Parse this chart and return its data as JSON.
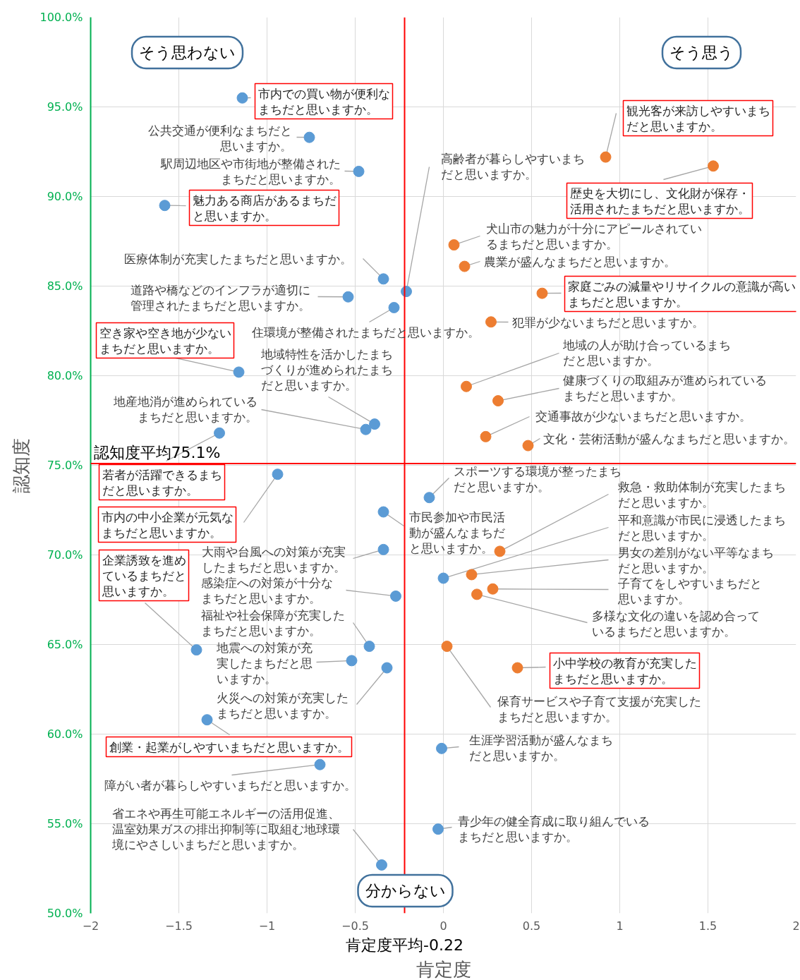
{
  "chart_data": {
    "type": "scatter",
    "xlabel": "肯定度",
    "ylabel": "認知度",
    "xlim": [
      -2,
      2
    ],
    "xticks": [
      -2,
      -1.5,
      -1,
      -0.5,
      0,
      0.5,
      1,
      1.5,
      2
    ],
    "ylim": [
      50,
      100
    ],
    "yticks": [
      {
        "value": 50,
        "label": "50.0%"
      },
      {
        "value": 55,
        "label": "55.0%"
      },
      {
        "value": 60,
        "label": "60.0%"
      },
      {
        "value": 65,
        "label": "65.0%"
      },
      {
        "value": 70,
        "label": "70.0%"
      },
      {
        "value": 75,
        "label": "75.0%"
      },
      {
        "value": 80,
        "label": "80.0%"
      },
      {
        "value": 85,
        "label": "85.0%"
      },
      {
        "value": 90,
        "label": "90.0%"
      },
      {
        "value": 95,
        "label": "95.0%"
      },
      {
        "value": 100,
        "label": "100.0%"
      }
    ],
    "grid": true,
    "marker": "circle",
    "series": [
      {
        "color": "#5b9bd5",
        "x": [
          -1.14,
          -0.76,
          -0.48,
          -1.58,
          -0.34,
          -0.21,
          -0.54,
          -0.28,
          -1.16,
          -0.39,
          -0.44,
          -1.27,
          -0.94,
          -0.08,
          -0.34,
          -0.34,
          -0.27,
          -1.4,
          -0.42,
          -0.52,
          -0.32,
          -1.34,
          -0.01,
          -0.7,
          -0.03,
          -0.35,
          0.0
        ],
        "values": [
          95.5,
          93.3,
          91.4,
          89.5,
          85.4,
          84.7,
          84.4,
          83.8,
          80.2,
          77.3,
          77.0,
          76.8,
          74.5,
          73.2,
          72.4,
          70.3,
          67.7,
          64.7,
          64.9,
          64.1,
          63.7,
          60.8,
          59.2,
          58.3,
          54.7,
          52.7,
          68.7
        ]
      },
      {
        "color": "#ed7d31",
        "x": [
          0.92,
          1.53,
          0.06,
          0.12,
          0.56,
          0.27,
          0.13,
          0.31,
          0.24,
          0.48,
          0.32,
          0.16,
          0.28,
          0.19,
          0.02,
          0.42
        ],
        "values": [
          92.2,
          91.7,
          87.3,
          86.1,
          84.6,
          83.0,
          79.4,
          78.6,
          76.6,
          76.1,
          70.2,
          68.9,
          68.1,
          67.8,
          64.9,
          63.7
        ]
      }
    ],
    "ref_lines": [
      {
        "axis": "x",
        "value": -0.22,
        "label": "肯定度平均-0.22",
        "color": "#ff0000"
      },
      {
        "axis": "y",
        "value": 75.1,
        "label": "認知度平均75.1%",
        "color": "#ff0000"
      }
    ],
    "annotations": [
      {
        "text": "市内での買い物が便利なまちだと思いますか。",
        "x": -1.14,
        "y": 95.5
      },
      {
        "text": "公共交通が便利なまちだと思いますか。",
        "x": -0.76,
        "y": 93.3
      },
      {
        "text": "駅周辺地区や市街地が整備されたまちだと思いますか。",
        "x": -0.48,
        "y": 91.4
      },
      {
        "text": "魅力ある商店があるまちだと思いますか。",
        "x": -1.58,
        "y": 89.5
      },
      {
        "text": "医療体制が充実したまちだと思いますか。",
        "x": -0.34,
        "y": 85.4
      },
      {
        "text": "高齢者が暮らしやすいまちだと思いますか。",
        "x": -0.21,
        "y": 84.7
      },
      {
        "text": "道路や橋などのインフラが適切に管理されたまちだと思いますか。",
        "x": -0.54,
        "y": 84.4
      },
      {
        "text": "住環境が整備されたまちだと思いますか。",
        "x": -0.28,
        "y": 83.8
      },
      {
        "text": "空き家や空き地が少ないまちだと思いますか。",
        "x": -1.16,
        "y": 80.2
      },
      {
        "text": "地域特性を活かしたまちづくりが進められたまちだと思いますか。",
        "x": -0.39,
        "y": 77.3
      },
      {
        "text": "地産地消が進められているまちだと思いますか。",
        "x": -0.44,
        "y": 77.0
      },
      {
        "text": "若者が活躍できるまちだと思いますか。",
        "x": -1.27,
        "y": 76.8
      },
      {
        "text": "市内の中小企業が元気なまちだと思いますか。",
        "x": -0.94,
        "y": 74.5
      },
      {
        "text": "スポーツする環境が整ったまちだと思いますか。",
        "x": -0.08,
        "y": 73.2
      },
      {
        "text": "市民参加や市民活動が盛んなまちだと思いますか。",
        "x": -0.34,
        "y": 72.4
      },
      {
        "text": "大雨や台風への対策が充実したまちだと思いますか。",
        "x": -0.34,
        "y": 70.3
      },
      {
        "text": "感染症への対策が十分なまちだと思いますか。",
        "x": -0.27,
        "y": 67.7
      },
      {
        "text": "企業誘致を進めているまちだと思いますか。",
        "x": -1.4,
        "y": 64.7
      },
      {
        "text": "福祉や社会保障が充実したまちだと思いますか。",
        "x": -0.42,
        "y": 64.9
      },
      {
        "text": "地震への対策が充実したまちだと思いますか。",
        "x": -0.52,
        "y": 64.1
      },
      {
        "text": "火災への対策が充実したまちだと思いますか。",
        "x": -0.32,
        "y": 63.7
      },
      {
        "text": "創業・起業がしやすいまちだと思いますか。",
        "x": -1.34,
        "y": 60.8
      },
      {
        "text": "生涯学習活動が盛んなまちだと思いますか。",
        "x": -0.01,
        "y": 59.2
      },
      {
        "text": "障がい者が暮らしやすいまちだと思いますか。",
        "x": -0.7,
        "y": 58.3
      },
      {
        "text": "青少年の健全育成に取り組んでいるまちだと思いますか。",
        "x": -0.03,
        "y": 54.7
      },
      {
        "text": "省エネや再生可能エネルギーの活用促進、温室効果ガスの排出抑制等に取組む地球環境にやさしいまちだと思いますか。",
        "x": -0.35,
        "y": 52.7
      },
      {
        "text": "平和意識が市民に浸透したまちだと思いますか。",
        "x": 0.0,
        "y": 68.7
      },
      {
        "text": "観光客が来訪しやすいまちだと思いますか。",
        "x": 0.92,
        "y": 92.2
      },
      {
        "text": "歴史を大切にし、文化財が保存・活用されたまちだと思いますか。",
        "x": 1.53,
        "y": 91.7
      },
      {
        "text": "犬山市の魅力が十分にアピールされているまちだと思いますか。",
        "x": 0.06,
        "y": 87.3
      },
      {
        "text": "農業が盛んなまちだと思いますか。",
        "x": 0.12,
        "y": 86.1
      },
      {
        "text": "家庭ごみの減量やリサイクルの意識が高いまちだと思いますか。",
        "x": 0.56,
        "y": 84.6
      },
      {
        "text": "犯罪が少ないまちだと思いますか。",
        "x": 0.27,
        "y": 83.0
      },
      {
        "text": "地域の人が助け合っているまちだと思いますか。",
        "x": 0.13,
        "y": 79.4
      },
      {
        "text": "健康づくりの取組みが進められているまちだと思いますか。",
        "x": 0.31,
        "y": 78.6
      },
      {
        "text": "交通事故が少ないまちだと思いますか。",
        "x": 0.24,
        "y": 76.6
      },
      {
        "text": "文化・芸術活動が盛んなまちだと思いますか。",
        "x": 0.48,
        "y": 76.1
      },
      {
        "text": "救急・救助体制が充実したまちだと思いますか。",
        "x": 0.32,
        "y": 70.2
      },
      {
        "text": "男女の差別がない平等なまちだと思いますか。",
        "x": 0.16,
        "y": 68.9
      },
      {
        "text": "子育てをしやすいまちだと思いますか。",
        "x": 0.28,
        "y": 68.1
      },
      {
        "text": "多様な文化の違いを認め合っているまちだと思いますか。",
        "x": 0.19,
        "y": 67.8
      },
      {
        "text": "保育サービスや子育て支援が充実したまちだと思いますか。",
        "x": 0.02,
        "y": 64.9
      },
      {
        "text": "小中学校の教育が充実したまちだと思いますか。",
        "x": 0.42,
        "y": 63.7
      },
      "そう思わない",
      "そう思う",
      "分からない"
    ]
  }
}
